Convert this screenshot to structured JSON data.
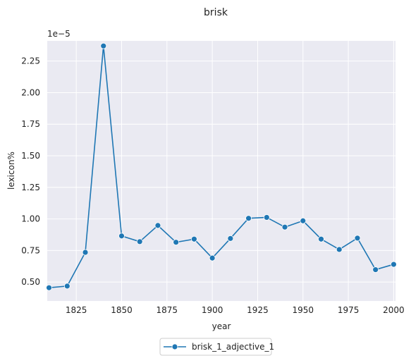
{
  "chart_data": {
    "type": "line",
    "title": "brisk",
    "xlabel": "year",
    "ylabel": "lexicon%",
    "y_offset_label": "1e−5",
    "xlim": [
      1809,
      2001
    ],
    "ylim": [
      0.35,
      2.41
    ],
    "x_ticks": [
      1825,
      1850,
      1875,
      1900,
      1925,
      1950,
      1975,
      2000
    ],
    "x_tick_labels": [
      "1825",
      "1850",
      "1875",
      "1900",
      "1925",
      "1950",
      "1975",
      "2000"
    ],
    "y_ticks": [
      0.5,
      0.75,
      1.0,
      1.25,
      1.5,
      1.75,
      2.0,
      2.25
    ],
    "y_tick_labels": [
      "0.50",
      "0.75",
      "1.00",
      "1.25",
      "1.50",
      "1.75",
      "2.00",
      "2.25"
    ],
    "grid": true,
    "legend_position": "bottom-center",
    "series": [
      {
        "name": "brisk_1_adjective_1",
        "color": "#1f77b4",
        "x": [
          1810,
          1820,
          1830,
          1840,
          1850,
          1860,
          1870,
          1880,
          1890,
          1900,
          1910,
          1920,
          1930,
          1940,
          1950,
          1960,
          1970,
          1980,
          1990,
          2000
        ],
        "y": [
          0.455,
          0.468,
          0.735,
          2.37,
          0.865,
          0.82,
          0.948,
          0.815,
          0.84,
          0.69,
          0.845,
          1.005,
          1.012,
          0.935,
          0.985,
          0.84,
          0.758,
          0.848,
          0.598,
          0.64
        ]
      }
    ]
  }
}
